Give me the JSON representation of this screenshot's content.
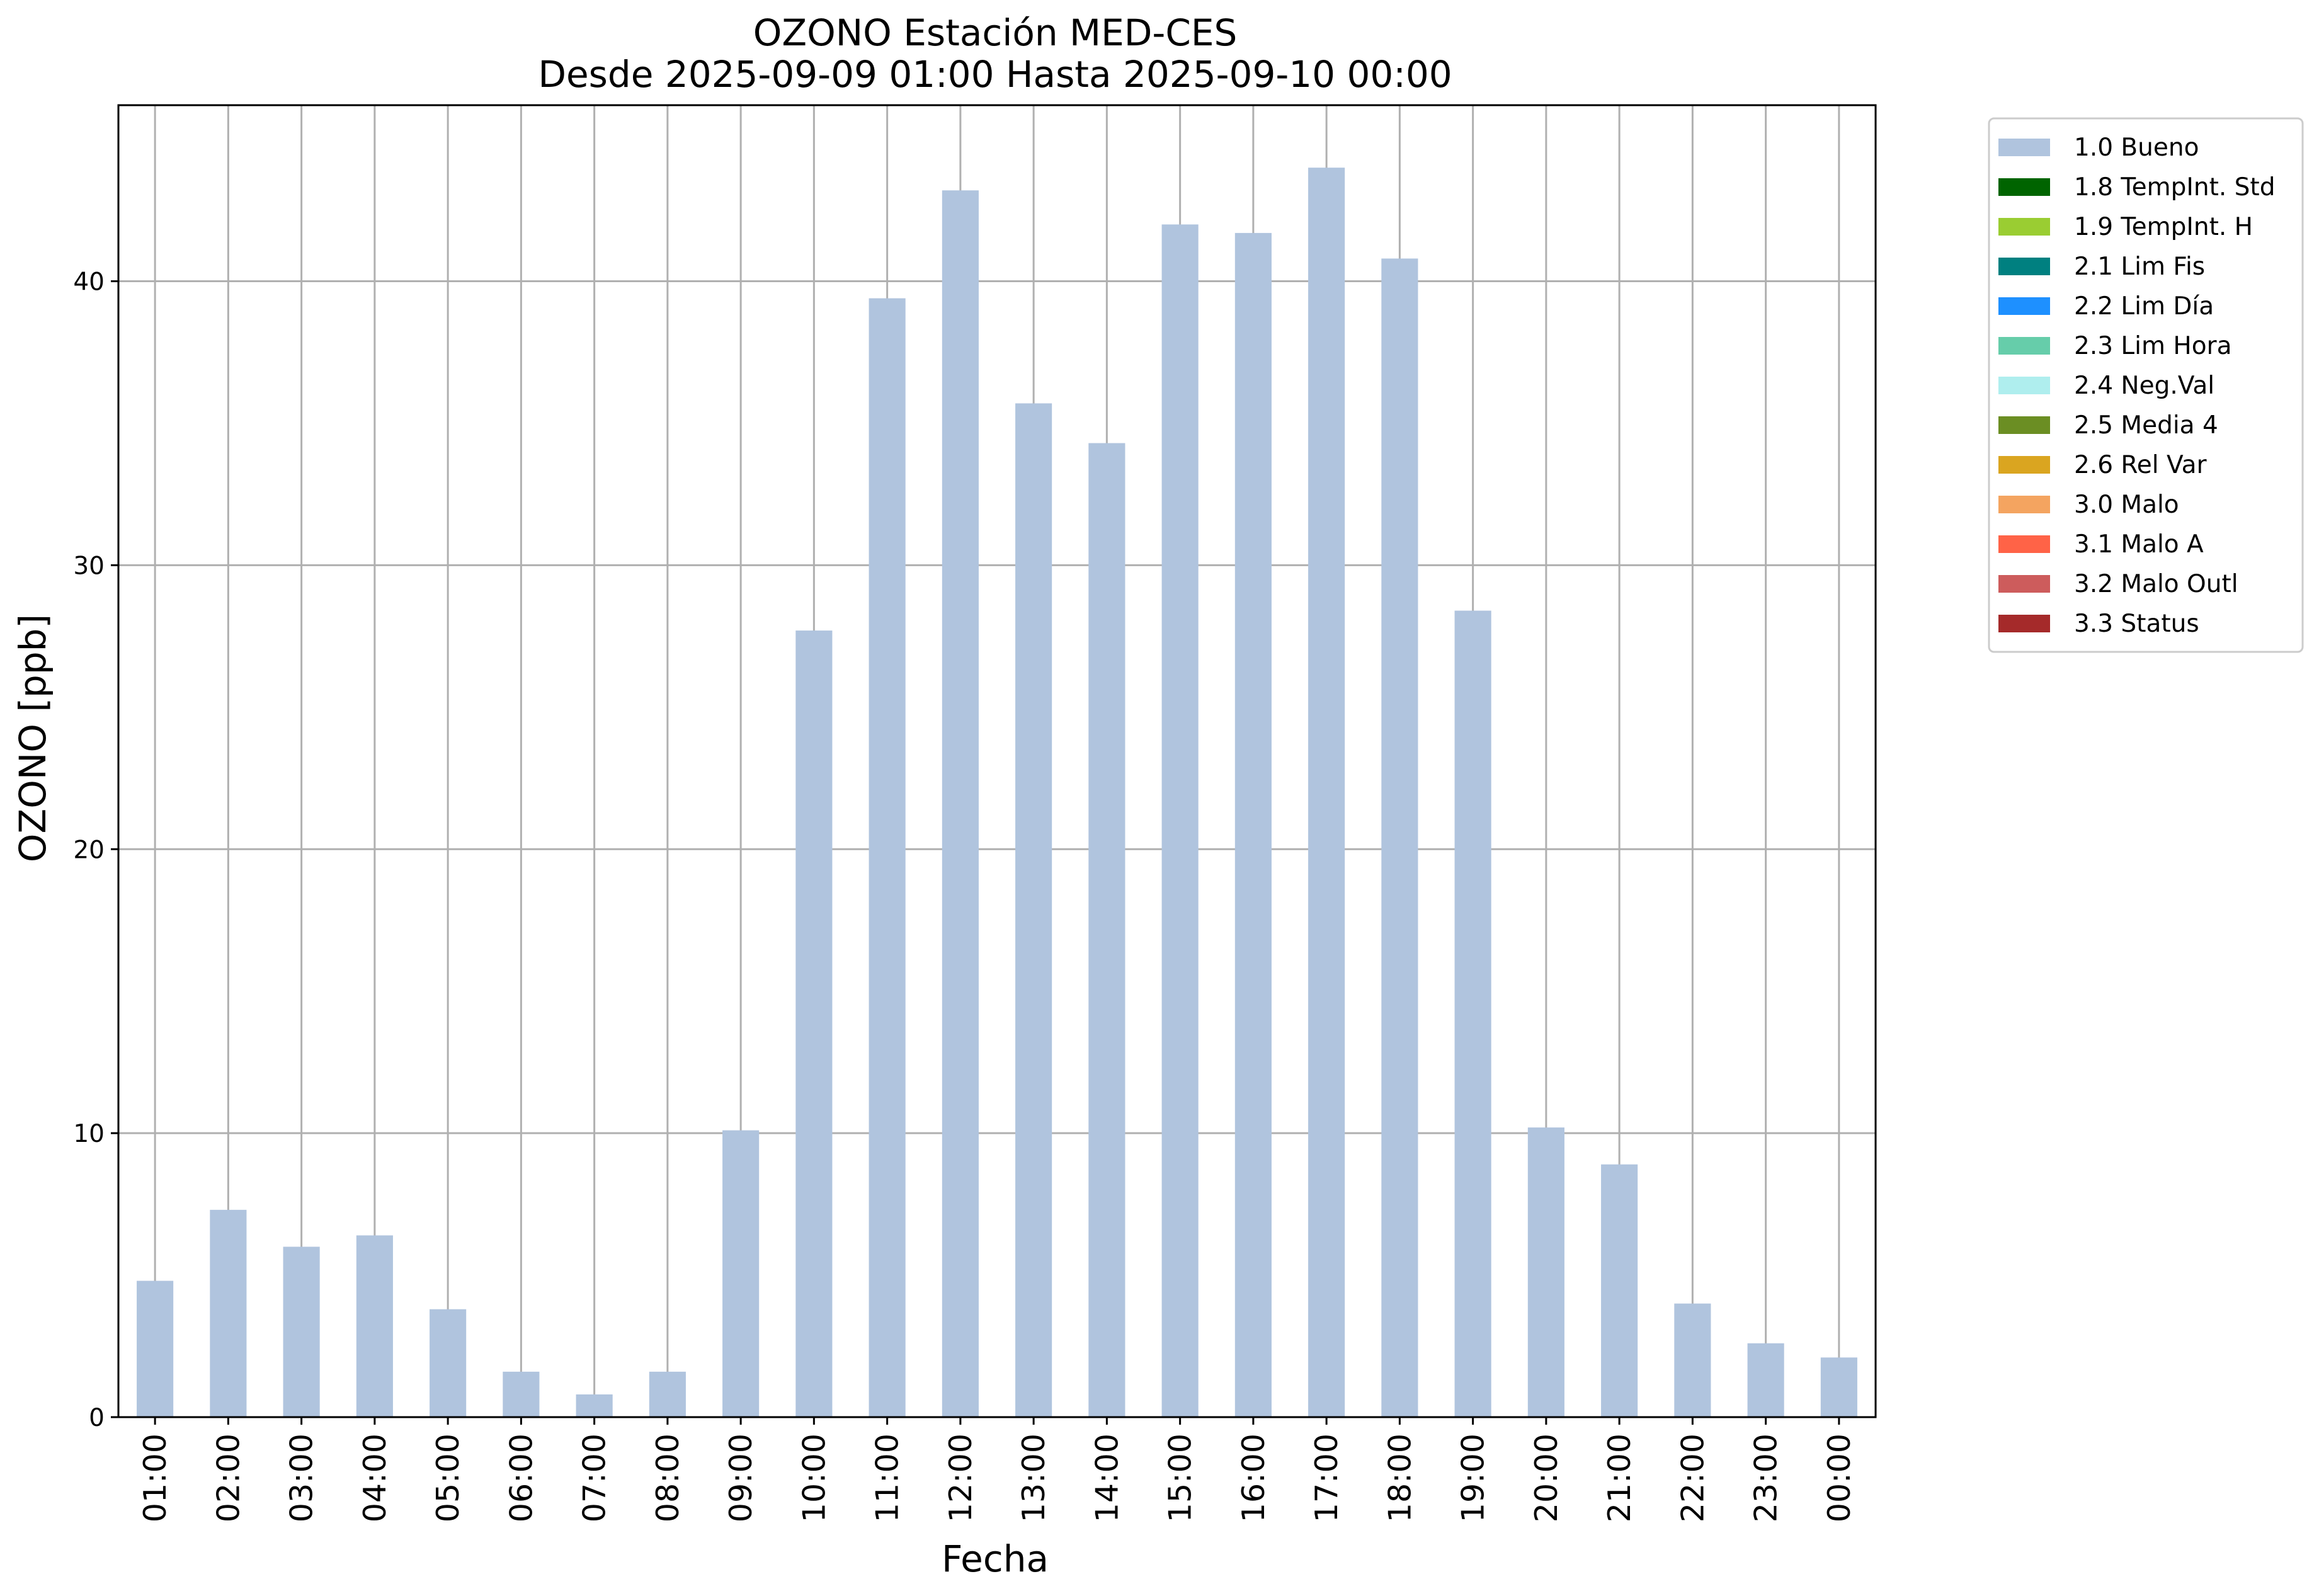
{
  "chart_data": {
    "type": "bar",
    "title": "OZONO Estación MED-CES",
    "subtitle": "Desde 2025-09-09 01:00 Hasta 2025-09-10 00:00",
    "xlabel": "Fecha",
    "ylabel": "OZONO [ppb]",
    "ylim": [
      0,
      46.2
    ],
    "yticks": [
      0,
      10,
      20,
      30,
      40
    ],
    "grid": true,
    "legend_position": "outside-top-right",
    "categories": [
      "01:00",
      "02:00",
      "03:00",
      "04:00",
      "05:00",
      "06:00",
      "07:00",
      "08:00",
      "09:00",
      "10:00",
      "11:00",
      "12:00",
      "13:00",
      "14:00",
      "15:00",
      "16:00",
      "17:00",
      "18:00",
      "19:00",
      "20:00",
      "21:00",
      "22:00",
      "23:00",
      "00:00"
    ],
    "series": [
      {
        "name": "1.0 Bueno",
        "color": "#b0c4de",
        "values": [
          4.8,
          7.3,
          6.0,
          6.4,
          3.8,
          1.6,
          0.8,
          1.6,
          10.1,
          27.7,
          39.4,
          43.2,
          35.7,
          34.3,
          42.0,
          41.7,
          44.0,
          40.8,
          28.4,
          10.2,
          8.9,
          4.0,
          2.6,
          2.1
        ]
      }
    ],
    "legend": [
      {
        "label": "1.0 Bueno",
        "color": "#b0c4de"
      },
      {
        "label": "1.8 TempInt. Std",
        "color": "#006400"
      },
      {
        "label": "1.9 TempInt. H",
        "color": "#9acd32"
      },
      {
        "label": "2.1 Lim Fis",
        "color": "#008080"
      },
      {
        "label": "2.2 Lim Día",
        "color": "#1e90ff"
      },
      {
        "label": "2.3 Lim Hora",
        "color": "#66cdaa"
      },
      {
        "label": "2.4 Neg.Val",
        "color": "#afeeee"
      },
      {
        "label": "2.5 Media 4",
        "color": "#6b8e23"
      },
      {
        "label": "2.6 Rel Var",
        "color": "#daa520"
      },
      {
        "label": "3.0 Malo",
        "color": "#f4a460"
      },
      {
        "label": "3.1 Malo A",
        "color": "#ff6347"
      },
      {
        "label": "3.2 Malo Outl",
        "color": "#cd5c5c"
      },
      {
        "label": "3.3 Status",
        "color": "#a52a2a"
      }
    ]
  }
}
